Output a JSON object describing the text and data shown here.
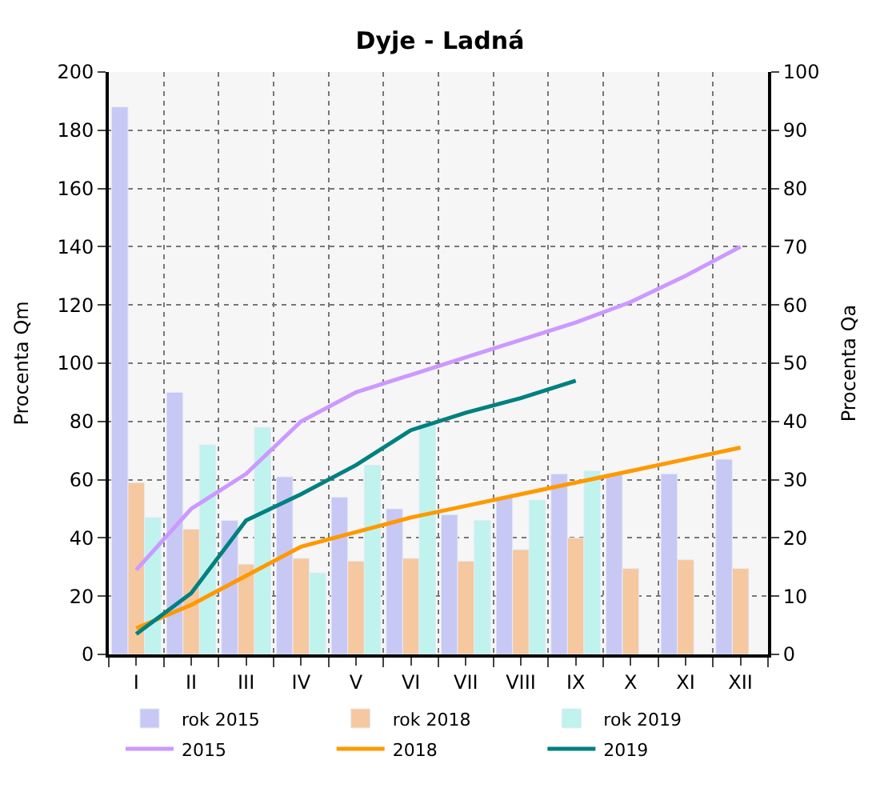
{
  "chart_data": {
    "type": "bar",
    "title": "Dyje - Ladná",
    "ylabel": "Procenta Qm",
    "y2label": "Procenta Qa",
    "categories": [
      "I",
      "II",
      "III",
      "IV",
      "V",
      "VI",
      "VII",
      "VIII",
      "IX",
      "X",
      "XI",
      "XII"
    ],
    "series": [
      {
        "name": "rok 2015",
        "color": "#c8c8f5",
        "values": [
          188,
          90,
          46,
          61,
          54,
          50,
          48,
          54,
          62,
          62,
          62,
          67
        ]
      },
      {
        "name": "rok 2018",
        "color": "#f5c8a0",
        "values": [
          59,
          43,
          31,
          33,
          32,
          33,
          32,
          36,
          40,
          29.5,
          32.5,
          29.5
        ]
      },
      {
        "name": "rok 2019",
        "color": "#c0f2ee",
        "values": [
          47,
          72,
          78,
          28,
          65,
          79,
          46,
          53,
          63,
          null,
          null,
          null
        ]
      },
      {
        "name": "2015",
        "type": "line",
        "axis": "y2",
        "color": "#cc99ff",
        "values": [
          14.5,
          25,
          31,
          40,
          45,
          48,
          51,
          54,
          57,
          60.5,
          65,
          70
        ]
      },
      {
        "name": "2018",
        "type": "line",
        "axis": "y2",
        "color": "#ff9900",
        "values": [
          4.5,
          8.5,
          13.5,
          18.5,
          21,
          23.5,
          25.5,
          27.5,
          29.5,
          31.5,
          33.5,
          35.5
        ]
      },
      {
        "name": "2019",
        "type": "line",
        "axis": "y2",
        "color": "#008080",
        "values": [
          3.5,
          10.5,
          23,
          27.5,
          32.5,
          38.5,
          41.5,
          44,
          47,
          null,
          null,
          null
        ]
      }
    ],
    "ylim": [
      0,
      200
    ],
    "yticks": [
      0,
      20,
      40,
      60,
      80,
      100,
      120,
      140,
      160,
      180,
      200
    ],
    "y2lim": [
      0,
      100
    ],
    "y2ticks": [
      0,
      10,
      20,
      30,
      40,
      50,
      60,
      70,
      80,
      90,
      100
    ],
    "grid": true,
    "legend": "bottom",
    "marker": "none",
    "line_style": "solid"
  }
}
